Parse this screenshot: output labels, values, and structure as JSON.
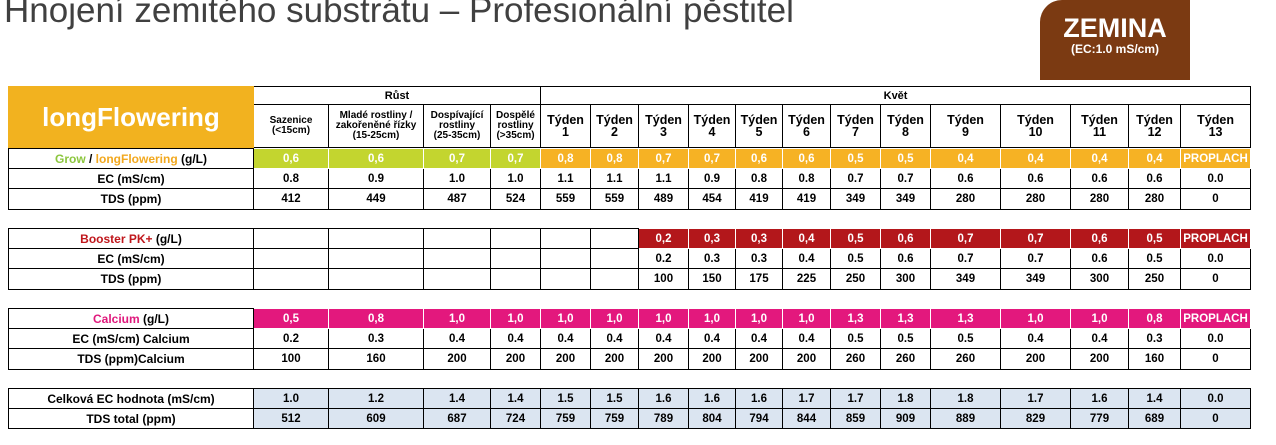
{
  "header": {
    "title": "Hnojení zemitého substrátu – Profesionální pěstitel",
    "badge": {
      "title": "ZEMINA",
      "subtitle": "(EC:1.0 mS/cm)"
    }
  },
  "table": {
    "brand": "longFlowering",
    "groups": [
      "Růst",
      "Květ"
    ],
    "columns": [
      [
        "Sazenice",
        "(<15cm)"
      ],
      [
        "Mladé rostliny /",
        "zakořeněné řízky",
        "(15-25cm)"
      ],
      [
        "Dospívající",
        "rostliny",
        "(25-35cm)"
      ],
      [
        "Dospělé",
        "rostliny",
        "(>35cm)"
      ],
      [
        "Týden",
        "1"
      ],
      [
        "Týden",
        "2"
      ],
      [
        "Týden",
        "3"
      ],
      [
        "Týden",
        "4"
      ],
      [
        "Týden",
        "5"
      ],
      [
        "Týden",
        "6"
      ],
      [
        "Týden",
        "7"
      ],
      [
        "Týden",
        "8"
      ],
      [
        "Týden",
        "9"
      ],
      [
        "Týden",
        "10"
      ],
      [
        "Týden",
        "11"
      ],
      [
        "Týden",
        "12"
      ],
      [
        "Týden",
        "13"
      ]
    ],
    "sections": [
      {
        "rows": [
          {
            "label": [
              "Grow",
              " / ",
              "longFlowering",
              " (g/L)"
            ],
            "cells": [
              "0,6",
              "0,6",
              "0,7",
              "0,7",
              "0,8",
              "0,8",
              "0,7",
              "0,7",
              "0,6",
              "0,6",
              "0,5",
              "0,5",
              "0,4",
              "0,4",
              "0,4",
              "0,4",
              "PROPLACH"
            ]
          },
          {
            "label": [
              "EC (mS/cm)"
            ],
            "cells": [
              "0.8",
              "0.9",
              "1.0",
              "1.0",
              "1.1",
              "1.1",
              "1.1",
              "0.9",
              "0.8",
              "0.8",
              "0.7",
              "0.7",
              "0.6",
              "0.6",
              "0.6",
              "0.6",
              "0.0"
            ]
          },
          {
            "label": [
              "TDS (ppm)"
            ],
            "cells": [
              "412",
              "449",
              "487",
              "524",
              "559",
              "559",
              "489",
              "454",
              "419",
              "419",
              "349",
              "349",
              "280",
              "280",
              "280",
              "280",
              "0"
            ]
          }
        ]
      },
      {
        "rows": [
          {
            "label": [
              "Booster PK+",
              " (g/L)"
            ],
            "cells": [
              null,
              null,
              null,
              null,
              null,
              null,
              "0,2",
              "0,3",
              "0,3",
              "0,4",
              "0,5",
              "0,6",
              "0,7",
              "0,7",
              "0,6",
              "0,5",
              "PROPLACH"
            ]
          },
          {
            "label": [
              "EC (mS/cm)"
            ],
            "cells": [
              null,
              null,
              null,
              null,
              null,
              null,
              "0.2",
              "0.3",
              "0.3",
              "0.4",
              "0.5",
              "0.6",
              "0.7",
              "0.7",
              "0.6",
              "0.5",
              "0.0"
            ]
          },
          {
            "label": [
              "TDS (ppm)"
            ],
            "cells": [
              null,
              null,
              null,
              null,
              null,
              null,
              "100",
              "150",
              "175",
              "225",
              "250",
              "300",
              "349",
              "349",
              "300",
              "250",
              "0"
            ]
          }
        ]
      },
      {
        "rows": [
          {
            "label": [
              "Calcium",
              " (g/L)"
            ],
            "cells": [
              "0,5",
              "0,8",
              "1,0",
              "1,0",
              "1,0",
              "1,0",
              "1,0",
              "1,0",
              "1,0",
              "1,0",
              "1,3",
              "1,3",
              "1,3",
              "1,0",
              "1,0",
              "0,8",
              "PROPLACH"
            ]
          },
          {
            "label": [
              "EC (mS/cm) Calcium"
            ],
            "cells": [
              "0.2",
              "0.3",
              "0.4",
              "0.4",
              "0.4",
              "0.4",
              "0.4",
              "0.4",
              "0.4",
              "0.4",
              "0.5",
              "0.5",
              "0.5",
              "0.4",
              "0.4",
              "0.3",
              "0.0"
            ]
          },
          {
            "label": [
              "TDS (ppm)Calcium"
            ],
            "cells": [
              "100",
              "160",
              "200",
              "200",
              "200",
              "200",
              "200",
              "200",
              "200",
              "200",
              "260",
              "260",
              "260",
              "200",
              "200",
              "160",
              "0"
            ]
          }
        ]
      },
      {
        "rows": [
          {
            "label": [
              "Celková EC hodnota (mS/cm)"
            ],
            "cells": [
              "1.0",
              "1.2",
              "1.4",
              "1.4",
              "1.5",
              "1.5",
              "1.6",
              "1.6",
              "1.6",
              "1.7",
              "1.7",
              "1.8",
              "1.8",
              "1.7",
              "1.6",
              "1.4",
              "0.0"
            ]
          },
          {
            "label": [
              "TDS total (ppm)"
            ],
            "cells": [
              "512",
              "609",
              "687",
              "724",
              "759",
              "759",
              "789",
              "804",
              "794",
              "844",
              "859",
              "909",
              "889",
              "829",
              "779",
              "689",
              "0"
            ]
          }
        ]
      }
    ]
  }
}
